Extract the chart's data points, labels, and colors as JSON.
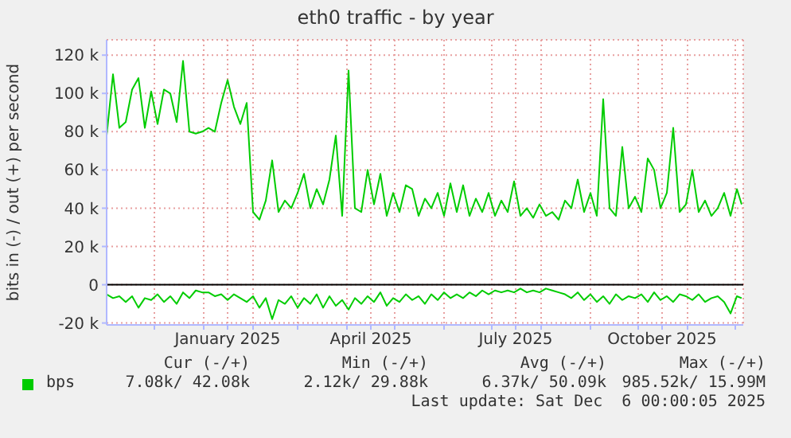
{
  "chart_data": {
    "type": "line",
    "title": "eth0 traffic - by year",
    "ylabel": "bits in (-) / out (+) per second",
    "x": [
      "2024-11-01",
      "2024-11-05",
      "2024-11-09",
      "2024-11-13",
      "2024-11-17",
      "2024-11-21",
      "2024-11-25",
      "2024-11-29",
      "2024-12-03",
      "2024-12-07",
      "2024-12-11",
      "2024-12-15",
      "2024-12-19",
      "2024-12-23",
      "2024-12-27",
      "2024-12-31",
      "2025-01-04",
      "2025-01-08",
      "2025-01-12",
      "2025-01-16",
      "2025-01-20",
      "2025-01-24",
      "2025-01-28",
      "2025-02-01",
      "2025-02-05",
      "2025-02-09",
      "2025-02-13",
      "2025-02-17",
      "2025-02-21",
      "2025-02-25",
      "2025-03-01",
      "2025-03-05",
      "2025-03-09",
      "2025-03-13",
      "2025-03-17",
      "2025-03-21",
      "2025-03-25",
      "2025-03-29",
      "2025-04-02",
      "2025-04-06",
      "2025-04-10",
      "2025-04-14",
      "2025-04-18",
      "2025-04-22",
      "2025-04-26",
      "2025-04-30",
      "2025-05-04",
      "2025-05-08",
      "2025-05-12",
      "2025-05-16",
      "2025-05-20",
      "2025-05-24",
      "2025-05-28",
      "2025-06-01",
      "2025-06-05",
      "2025-06-09",
      "2025-06-13",
      "2025-06-17",
      "2025-06-21",
      "2025-06-25",
      "2025-06-29",
      "2025-07-03",
      "2025-07-07",
      "2025-07-11",
      "2025-07-15",
      "2025-07-19",
      "2025-07-23",
      "2025-07-27",
      "2025-07-31",
      "2025-08-04",
      "2025-08-08",
      "2025-08-12",
      "2025-08-16",
      "2025-08-20",
      "2025-08-24",
      "2025-08-28",
      "2025-09-01",
      "2025-09-05",
      "2025-09-09",
      "2025-09-13",
      "2025-09-17",
      "2025-09-21",
      "2025-09-25",
      "2025-09-29",
      "2025-10-03",
      "2025-10-07",
      "2025-10-11",
      "2025-10-15",
      "2025-10-19",
      "2025-10-23",
      "2025-10-27",
      "2025-10-31",
      "2025-11-04",
      "2025-11-08",
      "2025-11-12",
      "2025-11-16",
      "2025-11-20",
      "2025-11-24",
      "2025-11-28",
      "2025-12-02",
      "2025-12-05"
    ],
    "series": [
      {
        "name": "bps",
        "color": "#00cc00",
        "values": [
          78000,
          110000,
          82000,
          85000,
          102000,
          108000,
          82000,
          101000,
          84000,
          102000,
          100000,
          85000,
          117000,
          80000,
          79000,
          80000,
          82000,
          80000,
          95000,
          107000,
          93000,
          84000,
          95000,
          38000,
          34000,
          44000,
          65000,
          38000,
          44000,
          40000,
          48000,
          58000,
          40000,
          50000,
          42000,
          55000,
          78000,
          36000,
          112000,
          40000,
          38000,
          60000,
          42000,
          58000,
          36000,
          48000,
          38000,
          52000,
          50000,
          36000,
          45000,
          40000,
          48000,
          36000,
          53000,
          38000,
          52000,
          36000,
          45000,
          38000,
          48000,
          36000,
          44000,
          38000,
          54000,
          36000,
          40000,
          35000,
          42000,
          36000,
          38000,
          34000,
          44000,
          40000,
          55000,
          38000,
          48000,
          36000,
          97000,
          40000,
          36000,
          72000,
          40000,
          46000,
          38000,
          66000,
          60000,
          40000,
          48000,
          82000,
          38000,
          42000,
          60000,
          38000,
          44000,
          36000,
          40000,
          48000,
          36000,
          50000,
          42000
        ]
      },
      {
        "color": "#00cc00",
        "values": [
          -5000,
          -7000,
          -6000,
          -9000,
          -6000,
          -12000,
          -7000,
          -8000,
          -5000,
          -9000,
          -6000,
          -10000,
          -4000,
          -7000,
          -3000,
          -4000,
          -4000,
          -6000,
          -5000,
          -8000,
          -5000,
          -7000,
          -9000,
          -6000,
          -12000,
          -7000,
          -18000,
          -8000,
          -10000,
          -6000,
          -12000,
          -7000,
          -10000,
          -5000,
          -12000,
          -6000,
          -11000,
          -8000,
          -13000,
          -7000,
          -10000,
          -6000,
          -9000,
          -4000,
          -11000,
          -7000,
          -9000,
          -5000,
          -8000,
          -6000,
          -10000,
          -5000,
          -8000,
          -4000,
          -7000,
          -5000,
          -7000,
          -4000,
          -6000,
          -3000,
          -5000,
          -3000,
          -4000,
          -3000,
          -4000,
          -2000,
          -4000,
          -3000,
          -4000,
          -2000,
          -3000,
          -4000,
          -5000,
          -7000,
          -4000,
          -8000,
          -5000,
          -9000,
          -6000,
          -10000,
          -5000,
          -8000,
          -6000,
          -7000,
          -5000,
          -9000,
          -4000,
          -8000,
          -6000,
          -9000,
          -5000,
          -6000,
          -8000,
          -5000,
          -9000,
          -7000,
          -6000,
          -9000,
          -15000,
          -6000,
          -7000
        ]
      }
    ],
    "xlim": [
      "2024-11-01",
      "2025-12-06"
    ],
    "xticks": [
      {
        "value": "2024-12-01",
        "label": null
      },
      {
        "value": "2025-01-01",
        "label": null
      },
      {
        "value": "2025-01-16",
        "label": "January 2025"
      },
      {
        "value": "2025-02-01",
        "label": null
      },
      {
        "value": "2025-03-01",
        "label": null
      },
      {
        "value": "2025-04-01",
        "label": null
      },
      {
        "value": "2025-04-16",
        "label": "April 2025"
      },
      {
        "value": "2025-05-01",
        "label": null
      },
      {
        "value": "2025-06-01",
        "label": null
      },
      {
        "value": "2025-07-01",
        "label": null
      },
      {
        "value": "2025-07-16",
        "label": "July 2025"
      },
      {
        "value": "2025-08-01",
        "label": null
      },
      {
        "value": "2025-09-01",
        "label": null
      },
      {
        "value": "2025-10-01",
        "label": null
      },
      {
        "value": "2025-10-16",
        "label": "October 2025"
      },
      {
        "value": "2025-11-01",
        "label": null
      },
      {
        "value": "2025-12-01",
        "label": null
      }
    ],
    "ylim": [
      -21000,
      128000
    ],
    "yticks": [
      {
        "value": -20000,
        "label": "-20 k"
      },
      0,
      {
        "value": 20000,
        "label": "20 k"
      },
      {
        "value": 40000,
        "label": "40 k"
      },
      {
        "value": 60000,
        "label": "60 k"
      },
      {
        "value": 80000,
        "label": "80 k"
      },
      {
        "value": 100000,
        "label": "100 k"
      },
      {
        "value": 120000,
        "label": "120 k"
      }
    ],
    "grid": true,
    "legend": "bottom left",
    "marker": "none",
    "line_style": "solid",
    "ref_lines": [
      {
        "axis": "y",
        "value": 0,
        "color": "#000000"
      }
    ],
    "annotations": [
      "Cur (-/+)",
      "Min (-/+)",
      "Avg (-/+)",
      "Max (-/+)",
      "7.08k/ 42.08k",
      "2.12k/ 29.88k",
      "6.37k/ 50.09k",
      "985.52k/ 15.99M",
      "Last update: Sat Dec  6 00:00:05 2025"
    ]
  }
}
